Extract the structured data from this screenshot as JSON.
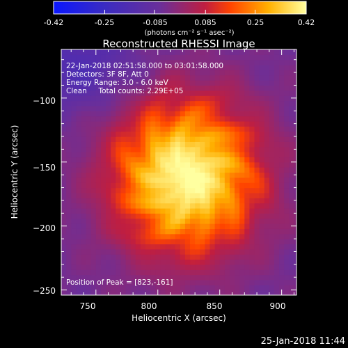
{
  "colorbar": {
    "tick_labels": [
      "-0.42",
      "-0.25",
      "-0.085",
      "0.085",
      "0.25",
      "0.42"
    ],
    "tick_values": [
      -0.42,
      -0.25,
      -0.085,
      0.085,
      0.25,
      0.42
    ],
    "range": [
      -0.42,
      0.42
    ],
    "unit_label": "(photons cm⁻² s⁻¹ asec⁻²)"
  },
  "chart_data": {
    "type": "heatmap",
    "title": "Reconstructed RHESSI Image",
    "xlabel": "Heliocentric X (arcsec)",
    "ylabel": "Heliocentric Y (arcsec)",
    "xlim": [
      722,
      912
    ],
    "ylim": [
      -254,
      -62
    ],
    "xticks": [
      750,
      800,
      850,
      900
    ],
    "xtick_labels": [
      "750",
      "800",
      "850",
      "900"
    ],
    "yticks": [
      -100,
      -150,
      -200,
      -250
    ],
    "ytick_labels": [
      "−100",
      "−150",
      "−200",
      "−250"
    ],
    "peak": {
      "x": 823,
      "y": -161,
      "value": 0.42
    },
    "colormap": "RHESSI (blue-purple-red-yellow-white)",
    "value_range": [
      -0.42,
      0.42
    ],
    "grid": false,
    "annotations": [
      "22-Jan-2018 02:51:58.000 to 03:01:58.000",
      "Detectors: 3F 8F, Att 0",
      "Energy Range: 3.0 - 6.0 keV",
      "Clean     Total counts: 2.29E+05",
      "Position of Peak = [823,-161]"
    ]
  },
  "timestamp": "25-Jan-2018 11:44",
  "colors": {
    "background": "#000000",
    "text": "#ffffff",
    "cmap_stops": [
      "#0a17ff",
      "#3a2bc2",
      "#6a2f9a",
      "#c01e40",
      "#ff4400",
      "#ffb000",
      "#ffffa0"
    ]
  }
}
